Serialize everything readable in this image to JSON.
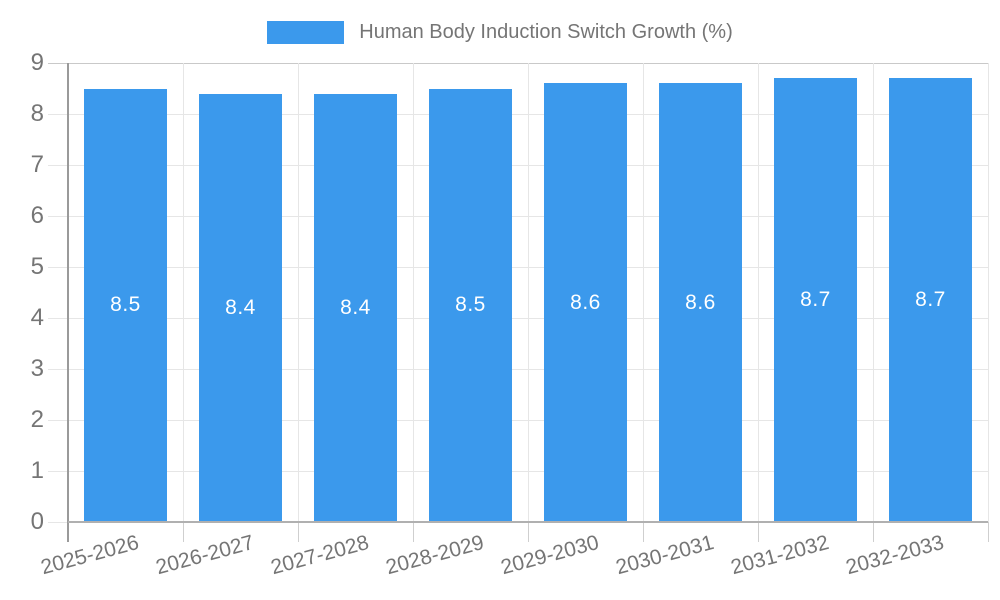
{
  "chart_data": {
    "type": "bar",
    "title": "",
    "legend": {
      "label": "Human Body Induction Switch Growth (%)",
      "position": "top-center"
    },
    "categories": [
      "2025-2026",
      "2026-2027",
      "2027-2028",
      "2028-2029",
      "2029-2030",
      "2030-2031",
      "2031-2032",
      "2032-2033"
    ],
    "series": [
      {
        "name": "Human Body Induction Switch Growth (%)",
        "values": [
          8.5,
          8.4,
          8.4,
          8.5,
          8.6,
          8.6,
          8.7,
          8.7
        ],
        "value_labels": [
          "8.5",
          "8.4",
          "8.4",
          "8.5",
          "8.6",
          "8.6",
          "8.7",
          "8.7"
        ]
      }
    ],
    "xlabel": "",
    "ylabel": "",
    "ylim": [
      0,
      9
    ],
    "y_ticks": [
      0,
      1,
      2,
      3,
      4,
      5,
      6,
      7,
      8,
      9
    ],
    "grid": true,
    "colors": {
      "bar": "#3b99ec",
      "bar_value_text": "#ffffff",
      "axis_text": "#757575",
      "legend_text": "#757575",
      "gridline": "#e6e6e6",
      "gridline_top": "#c9c9c9",
      "axis_tick": "#cfcfcf",
      "y_axis_line": "#9a9a9a",
      "x_axis_line": "#b0b0b0",
      "background": "#ffffff"
    }
  }
}
